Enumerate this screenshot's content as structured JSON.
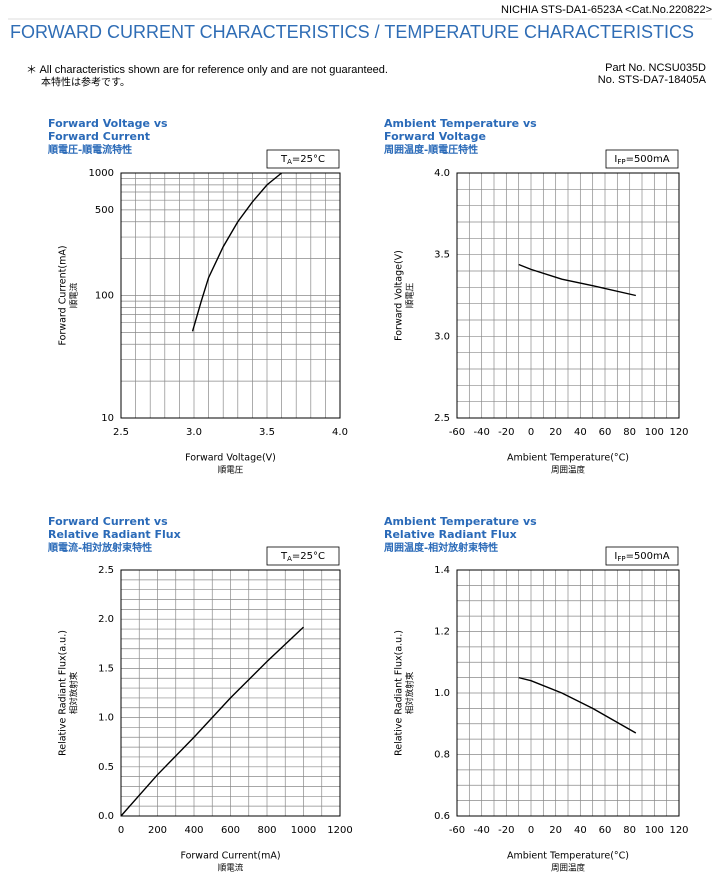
{
  "header": {
    "doc_id": "NICHIA STS-DA1-6523A <Cat.No.220822>",
    "title": "FORWARD CURRENT CHARACTERISTICS / TEMPERATURE CHARACTERISTICS",
    "note": "＊ All characteristics shown are for reference only and are not guaranteed.",
    "note_jp": "本特性は参考です。",
    "part_no": "Part No. NCSU035D",
    "spec_no": "No. STS-DA7-18405A"
  },
  "chart_data": [
    {
      "type": "line",
      "title": [
        "Forward Voltage vs",
        "Forward Current"
      ],
      "title_jp": "順電圧-順電流特性",
      "condition": {
        "main": "T",
        "sub": "A",
        "rest": "=25°C"
      },
      "x_label": "Forward Voltage(V)",
      "x_label_jp": "順電圧",
      "y_label": "Forward Current(mA)",
      "y_label_jp": "順電流",
      "x": [
        2.99,
        3.05,
        3.1,
        3.2,
        3.3,
        3.4,
        3.5,
        3.6
      ],
      "values": [
        51,
        90,
        140,
        250,
        400,
        580,
        800,
        1000
      ],
      "color": "#000000",
      "xlim": [
        2.5,
        4.0
      ],
      "xticks": [
        2.5,
        {
          "value": 3,
          "label": "3.0"
        },
        3.5,
        {
          "value": 4,
          "label": "4.0"
        }
      ],
      "xminor": [
        2.6,
        2.7,
        2.8,
        2.9,
        3.1,
        3.2,
        3.3,
        3.4,
        3.6,
        3.7,
        3.8,
        3.9
      ],
      "ylim": [
        10,
        1000
      ],
      "yscale": "log",
      "yticks": [
        10,
        100,
        500,
        1000
      ],
      "yminor": [
        20,
        30,
        40,
        50,
        60,
        70,
        80,
        90,
        200,
        300,
        400,
        600,
        700,
        800,
        900
      ],
      "grid": true
    },
    {
      "type": "line",
      "title": [
        "Ambient Temperature vs",
        "Forward Voltage"
      ],
      "title_jp": "周囲温度-順電圧特性",
      "condition": {
        "main": "I",
        "sub": "FP",
        "rest": "=500mA"
      },
      "x_label": "Ambient Temperature(°C)",
      "x_label_jp": "周囲温度",
      "y_label": "Forward Voltage(V)",
      "y_label_jp": "順電圧",
      "x": [
        -10,
        0,
        25,
        50,
        85
      ],
      "values": [
        3.44,
        3.41,
        3.35,
        3.31,
        3.25
      ],
      "color": "#000000",
      "xlim": [
        -60,
        120
      ],
      "xticks": [
        -60,
        -40,
        -20,
        0,
        20,
        40,
        60,
        80,
        100,
        120
      ],
      "xminor": [
        -50,
        -30,
        -10,
        10,
        30,
        50,
        70,
        90,
        110
      ],
      "ylim": [
        2.5,
        4.0
      ],
      "yticks": [
        2.5,
        {
          "value": 3,
          "label": "3.0"
        },
        3.5,
        {
          "value": 4,
          "label": "4.0"
        }
      ],
      "yminor": [
        2.6,
        2.7,
        2.8,
        2.9,
        3.1,
        3.2,
        3.3,
        3.4,
        3.6,
        3.7,
        3.8,
        3.9
      ],
      "grid": true
    },
    {
      "type": "line",
      "title": [
        "Forward Current vs",
        "Relative Radiant Flux"
      ],
      "title_jp": "順電流-相対放射束特性",
      "condition": {
        "main": "T",
        "sub": "A",
        "rest": "=25°C"
      },
      "x_label": "Forward Current(mA)",
      "x_label_jp": "順電流",
      "y_label": "Relative Radiant Flux(a.u.)",
      "y_label_jp": "相対放射束",
      "x": [
        0,
        200,
        400,
        600,
        800,
        1000
      ],
      "values": [
        0,
        0.42,
        0.8,
        1.2,
        1.57,
        1.92
      ],
      "color": "#000000",
      "xlim": [
        0,
        1200
      ],
      "xticks": [
        0,
        200,
        400,
        600,
        800,
        1000,
        1200
      ],
      "xminor": [
        100,
        300,
        500,
        700,
        900,
        1100
      ],
      "ylim": [
        0,
        2.5
      ],
      "yticks": [
        {
          "value": 0,
          "label": "0.0"
        },
        0.5,
        {
          "value": 1,
          "label": "1.0"
        },
        1.5,
        {
          "value": 2,
          "label": "2.0"
        },
        2.5
      ],
      "yminor": [
        0.1,
        0.2,
        0.3,
        0.4,
        0.6,
        0.7,
        0.8,
        0.9,
        1.1,
        1.2,
        1.3,
        1.4,
        1.6,
        1.7,
        1.8,
        1.9,
        2.1,
        2.2,
        2.3,
        2.4
      ],
      "grid": true
    },
    {
      "type": "line",
      "title": [
        "Ambient Temperature vs",
        "Relative Radiant Flux"
      ],
      "title_jp": "周囲温度-相対放射束特性",
      "condition": {
        "main": "I",
        "sub": "FP",
        "rest": "=500mA"
      },
      "x_label": "Ambient Temperature(°C)",
      "x_label_jp": "周囲温度",
      "y_label": "Relative Radiant Flux(a.u.)",
      "y_label_jp": "相対放射束",
      "x": [
        -10,
        0,
        25,
        50,
        85
      ],
      "values": [
        1.05,
        1.04,
        1.0,
        0.95,
        0.87
      ],
      "color": "#000000",
      "xlim": [
        -60,
        120
      ],
      "xticks": [
        -60,
        -40,
        -20,
        0,
        20,
        40,
        60,
        80,
        100,
        120
      ],
      "xminor": [
        -50,
        -30,
        -10,
        10,
        30,
        50,
        70,
        90,
        110
      ],
      "ylim": [
        0.6,
        1.4
      ],
      "yticks": [
        0.6,
        0.8,
        {
          "value": 1,
          "label": "1.0"
        },
        1.2,
        1.4
      ],
      "yminor": [
        0.65,
        0.7,
        0.75,
        0.85,
        0.9,
        0.95,
        1.05,
        1.1,
        1.15,
        1.25,
        1.3,
        1.35
      ],
      "grid": true
    }
  ]
}
